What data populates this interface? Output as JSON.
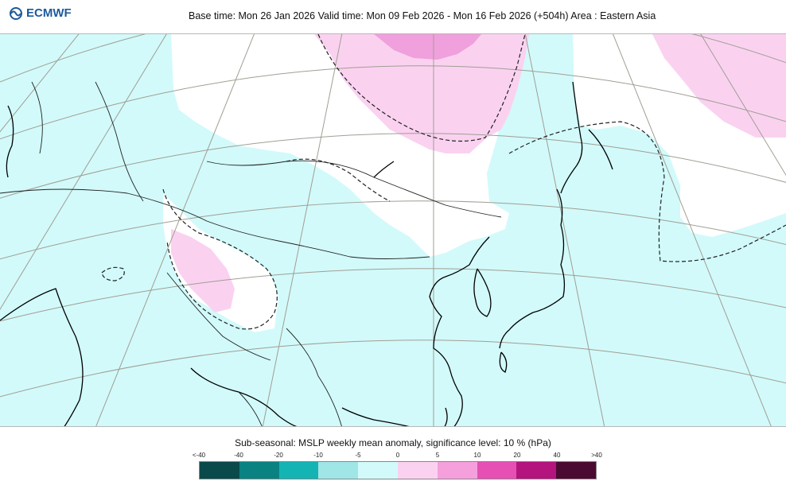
{
  "header": {
    "logo_text": "ECMWF",
    "logo_icon": "ecmwf-swirl-icon",
    "title": "Base time: Mon 26 Jan 2026 Valid time: Mon 09 Feb 2026 - Mon 16 Feb 2026 (+504h) Area : Eastern Asia"
  },
  "map": {
    "region": "Eastern Asia",
    "fill_colors": {
      "anomaly_minus5_0": "#d2fafa",
      "anomaly_0_5": "#ffffff",
      "anomaly_5_10": "#fad2f0",
      "anomaly_10_20": "#f0a0dc",
      "coastline": "#000000",
      "graticule": "#a09e93",
      "significance_contour": "#222222"
    }
  },
  "legend": {
    "title": "Sub-seasonal: MSLP weekly mean anomaly, significance level: 10 % (hPa)",
    "ticks": [
      "<-40",
      "-40",
      "-20",
      "-10",
      "-5",
      "0",
      "5",
      "10",
      "20",
      "40",
      ">40"
    ],
    "colors": [
      "#0a4a4a",
      "#0a8282",
      "#14b4b4",
      "#a0e6e6",
      "#d2fafa",
      "#fad2f0",
      "#f5a0dc",
      "#e650b4",
      "#b4147d",
      "#4b0a32"
    ]
  }
}
